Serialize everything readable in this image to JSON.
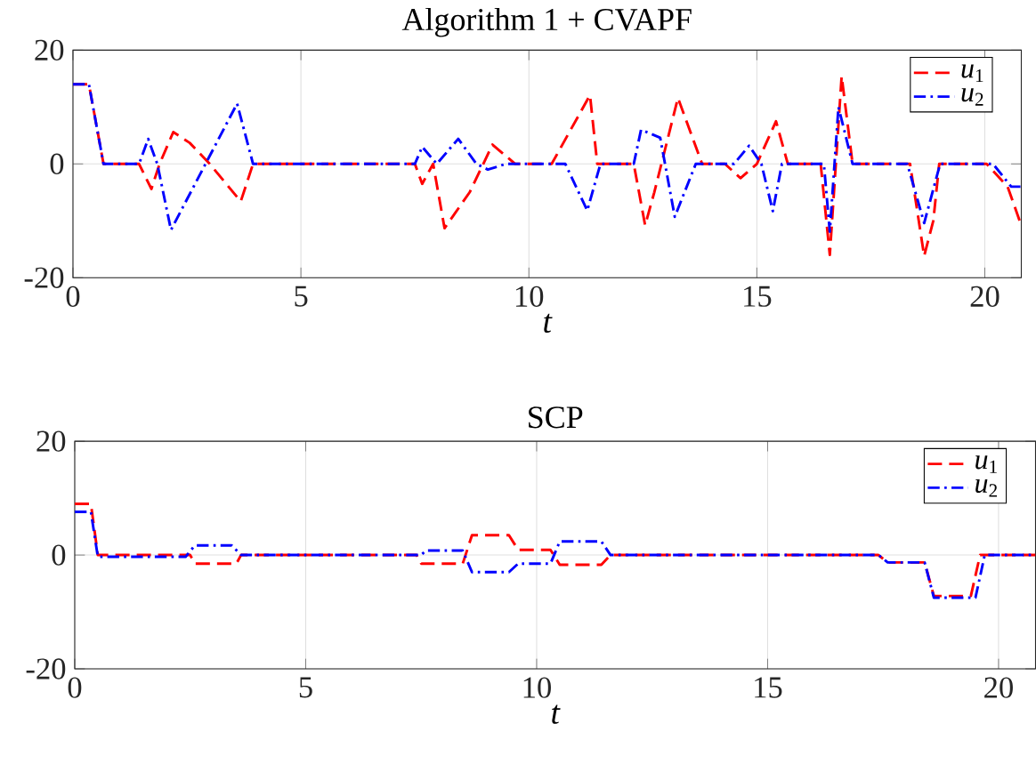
{
  "chart_data": [
    {
      "type": "line",
      "title": "Algorithm 1 + CVAPF",
      "xlabel": "t",
      "xlim": [
        0,
        20.8
      ],
      "ylim": [
        -20,
        20
      ],
      "xticks": [
        0,
        5,
        10,
        15,
        20
      ],
      "yticks": [
        -20,
        0,
        20
      ],
      "grid": true,
      "legend": "top right",
      "series": [
        {
          "name": "*u*$_{1}$",
          "color": "#ff0000",
          "line_style": "dashed",
          "x": [
            0,
            0.35,
            0.67,
            1.45,
            1.72,
            1.9,
            2.2,
            2.56,
            3.0,
            3.68,
            3.95,
            7.5,
            7.66,
            7.9,
            8.15,
            8.7,
            9.0,
            9.2,
            9.7,
            10.5,
            11.34,
            11.5,
            12.3,
            12.55,
            12.75,
            13.27,
            13.8,
            14.3,
            14.64,
            15.0,
            15.42,
            15.68,
            16.4,
            16.6,
            16.86,
            17.1,
            18.36,
            18.67,
            18.87,
            19.0,
            20.04,
            20.5,
            20.8
          ],
          "values": [
            14,
            14,
            0,
            0,
            -4.4,
            0,
            5.6,
            3.7,
            0,
            -6.6,
            0,
            0,
            -3.5,
            0,
            -11.3,
            -5,
            0,
            3.4,
            0,
            0,
            12.1,
            0,
            0,
            -10.8,
            -5,
            11.6,
            0,
            0,
            -2.5,
            0,
            7.5,
            0,
            0,
            -16,
            15.4,
            0,
            0,
            -16.2,
            -10,
            0,
            0,
            -4,
            -10.8
          ]
        },
        {
          "name": "*u*$_{2}$",
          "color": "#0000ff",
          "line_style": "dashdot",
          "x": [
            0,
            0.35,
            0.67,
            1.45,
            1.65,
            1.85,
            2.15,
            3.6,
            3.95,
            7.5,
            7.66,
            7.98,
            8.45,
            8.85,
            9.1,
            9.5,
            10.8,
            11.28,
            11.57,
            12.3,
            12.46,
            12.88,
            13.2,
            13.66,
            14.5,
            14.83,
            15.1,
            15.35,
            15.55,
            16.47,
            16.6,
            16.79,
            17.1,
            18.3,
            18.67,
            19.02,
            20.18,
            20.58,
            20.8
          ],
          "values": [
            14,
            14,
            0,
            0,
            4.4,
            0,
            -11.6,
            10.6,
            0,
            0,
            3,
            0,
            4.4,
            0,
            -1,
            0,
            0,
            -8.2,
            0,
            0,
            6,
            4.6,
            -9.3,
            0,
            0,
            3.2,
            0,
            -8.3,
            0,
            0,
            -11.9,
            10,
            0,
            0,
            -10.4,
            0,
            0,
            -4,
            -4
          ]
        }
      ]
    },
    {
      "type": "line",
      "title": "SCP",
      "xlabel": "t",
      "xlim": [
        0,
        20.8
      ],
      "ylim": [
        -20,
        20
      ],
      "xticks": [
        0,
        5,
        10,
        15,
        20
      ],
      "yticks": [
        -20,
        0,
        20
      ],
      "grid": true,
      "legend": "top right",
      "series": [
        {
          "name": "*u*$_{1}$",
          "color": "#ff0000",
          "line_style": "dashed",
          "x": [
            0,
            0.35,
            0.5,
            2.5,
            2.6,
            3.5,
            3.6,
            7.4,
            7.5,
            8.4,
            8.6,
            9.4,
            9.6,
            10.3,
            10.5,
            11.4,
            11.6,
            17.4,
            17.6,
            18.4,
            18.6,
            19.4,
            19.6,
            20.8
          ],
          "values": [
            9,
            9,
            0,
            0,
            -1.5,
            -1.5,
            0,
            0,
            -1.5,
            -1.5,
            3.5,
            3.5,
            0.9,
            0.9,
            -1.7,
            -1.7,
            0,
            0,
            -1.3,
            -1.3,
            -7.2,
            -7.2,
            0,
            0
          ]
        },
        {
          "name": "*u*$_{2}$",
          "color": "#0000ff",
          "line_style": "dashdot",
          "x": [
            0,
            0.35,
            0.5,
            2.4,
            2.6,
            3.4,
            3.6,
            7.5,
            7.6,
            8.4,
            8.6,
            9.4,
            9.6,
            10.3,
            10.5,
            11.4,
            11.6,
            17.4,
            17.6,
            18.4,
            18.6,
            19.5,
            19.7,
            20.8
          ],
          "values": [
            7.6,
            7.6,
            -0.3,
            -0.3,
            1.7,
            1.7,
            0,
            0,
            0.8,
            0.8,
            -3,
            -3,
            -1.5,
            -1.5,
            2.4,
            2.4,
            0,
            0,
            -1.3,
            -1.3,
            -7.5,
            -7.5,
            0,
            0
          ]
        }
      ]
    }
  ]
}
